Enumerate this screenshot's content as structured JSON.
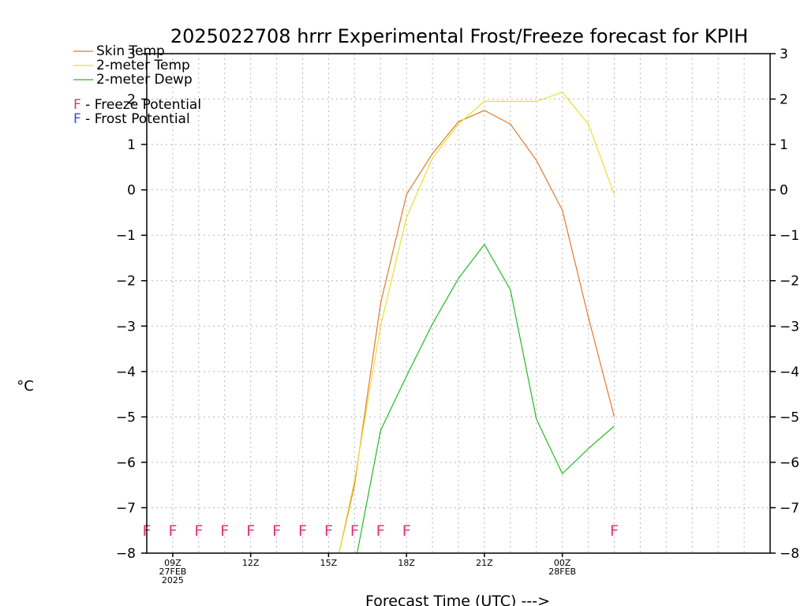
{
  "chart_data": {
    "type": "line",
    "title": "2025022708 hrrr Experimental Frost/Freeze forecast for KPIH",
    "ylabel": "°C",
    "xlabel": "Forecast Time (UTC) --->",
    "ylim": [
      -8,
      3
    ],
    "yticks": [
      -8,
      -7,
      -6,
      -5,
      -4,
      -3,
      -2,
      -1,
      0,
      1,
      2,
      3
    ],
    "xlim": [
      8,
      32
    ],
    "grid": true,
    "legend_position": "top-left",
    "xticks": [
      {
        "x": 9,
        "lines": [
          "09Z",
          "27FEB",
          "2025"
        ]
      },
      {
        "x": 12,
        "lines": [
          "12Z"
        ]
      },
      {
        "x": 15,
        "lines": [
          "15Z"
        ]
      },
      {
        "x": 18,
        "lines": [
          "18Z"
        ]
      },
      {
        "x": 21,
        "lines": [
          "21Z"
        ]
      },
      {
        "x": 24,
        "lines": [
          "00Z",
          "28FEB"
        ]
      }
    ],
    "series": [
      {
        "name": "Skin Temp",
        "color": "#e07a2e",
        "points": [
          [
            15.4,
            -8
          ],
          [
            16,
            -6.5
          ],
          [
            17,
            -2.5
          ],
          [
            18,
            -0.1
          ],
          [
            19,
            0.8
          ],
          [
            20,
            1.5
          ],
          [
            21,
            1.75
          ],
          [
            22,
            1.45
          ],
          [
            23,
            0.65
          ],
          [
            24,
            -0.45
          ],
          [
            25,
            -2.8
          ],
          [
            26,
            -5.0
          ]
        ]
      },
      {
        "name": "2-meter Temp",
        "color": "#e8e030",
        "points": [
          [
            15.4,
            -8
          ],
          [
            16,
            -6.4
          ],
          [
            17,
            -3.0
          ],
          [
            18,
            -0.6
          ],
          [
            19,
            0.7
          ],
          [
            20,
            1.45
          ],
          [
            21,
            1.95
          ],
          [
            22,
            1.95
          ],
          [
            23,
            1.95
          ],
          [
            24,
            2.15
          ],
          [
            25,
            1.45
          ],
          [
            26,
            -0.1
          ]
        ]
      },
      {
        "name": "2-meter Dewp",
        "color": "#22bb22",
        "points": [
          [
            16.1,
            -8
          ],
          [
            17,
            -5.3
          ],
          [
            18,
            -4.1
          ],
          [
            19,
            -2.95
          ],
          [
            20,
            -1.95
          ],
          [
            21,
            -1.2
          ],
          [
            22,
            -2.2
          ],
          [
            23,
            -5.05
          ],
          [
            24,
            -6.25
          ],
          [
            25,
            -5.7
          ],
          [
            26,
            -5.2
          ]
        ]
      }
    ],
    "potential_markers": {
      "y": -7.5,
      "freeze_x": [
        8,
        9,
        10,
        11,
        12,
        13,
        14,
        15,
        16,
        17,
        18,
        26
      ],
      "frost_x": []
    }
  },
  "legend": {
    "items": [
      {
        "label": "Skin Temp",
        "color": "#e07a2e"
      },
      {
        "label": "2-meter Temp",
        "color": "#e8e030"
      },
      {
        "label": "2-meter Dewp",
        "color": "#22bb22"
      }
    ],
    "freeze": {
      "letter": "F",
      "label": " - Freeze Potential",
      "color": "#e0307a"
    },
    "frost": {
      "letter": "F",
      "label": " - Frost Potential",
      "color": "#3a4ae0"
    }
  }
}
